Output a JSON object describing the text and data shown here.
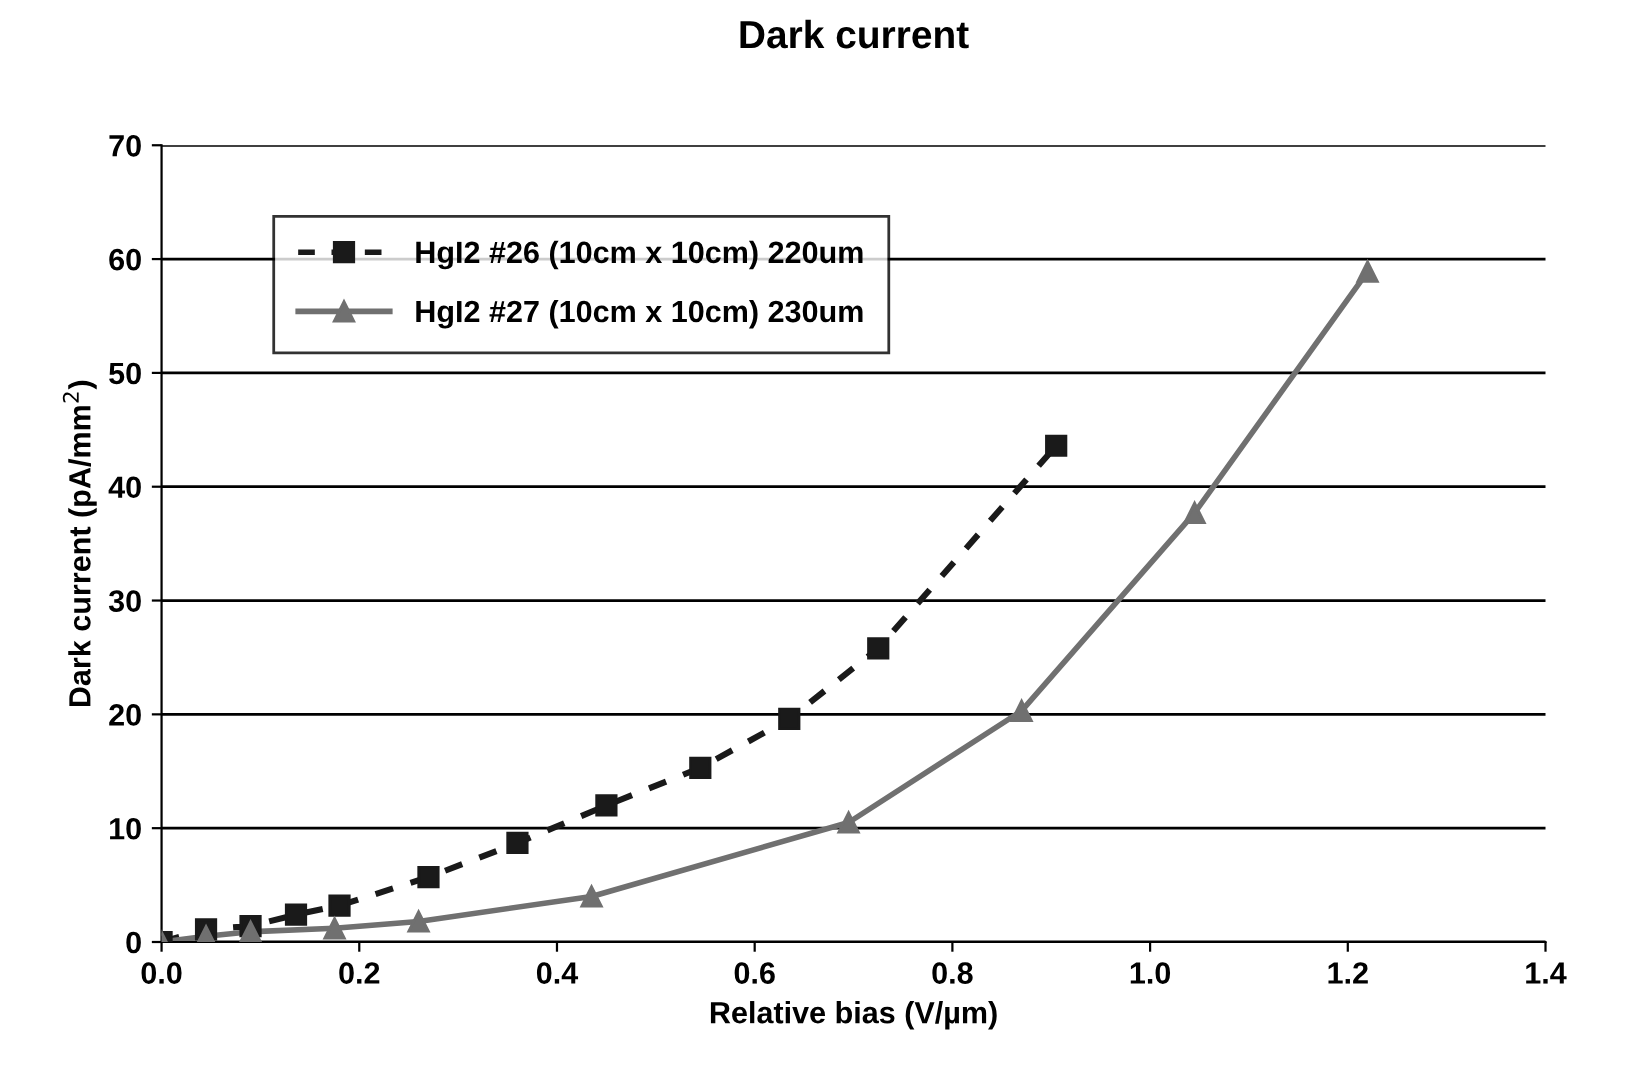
{
  "chart_data": {
    "type": "line",
    "title": "Dark current",
    "xlabel": "Relative bias (V/µm)",
    "ylabel": "Dark current (pA/mm$^{2}$)",
    "xlim": [
      0,
      1.4
    ],
    "xticks": [
      {
        "value": 0,
        "label": "0.0"
      },
      0.2,
      0.4,
      0.6,
      0.8,
      {
        "value": 1,
        "label": "1.0"
      },
      1.2,
      1.4
    ],
    "ylim": [
      0,
      70
    ],
    "yticks": [
      0,
      10,
      20,
      30,
      40,
      50,
      60,
      70
    ],
    "grid": "y",
    "legend": "top left",
    "series": [
      {
        "name": "HgI2 #26 (10cm x 10cm) 220um",
        "color": "#1a1a1a",
        "marker": "square",
        "line_style": "dashed",
        "x": [
          0,
          0.045,
          0.09,
          0.136,
          0.18,
          0.27,
          0.36,
          0.45,
          0.545,
          0.635,
          0.725,
          0.905
        ],
        "values": [
          0,
          1.1,
          1.4,
          2.4,
          3.2,
          5.7,
          8.7,
          12.0,
          15.3,
          19.6,
          25.8,
          43.6
        ]
      },
      {
        "name": "HgI2 #27 (10cm x 10cm) 230um",
        "color": "#707070",
        "marker": "triangle",
        "line_style": "solid",
        "x": [
          0,
          0.045,
          0.09,
          0.175,
          0.26,
          0.435,
          0.695,
          0.87,
          1.045,
          1.22
        ],
        "values": [
          0,
          0.5,
          0.9,
          1.2,
          1.8,
          4.0,
          10.5,
          20.3,
          37.7,
          58.9
        ]
      }
    ]
  }
}
